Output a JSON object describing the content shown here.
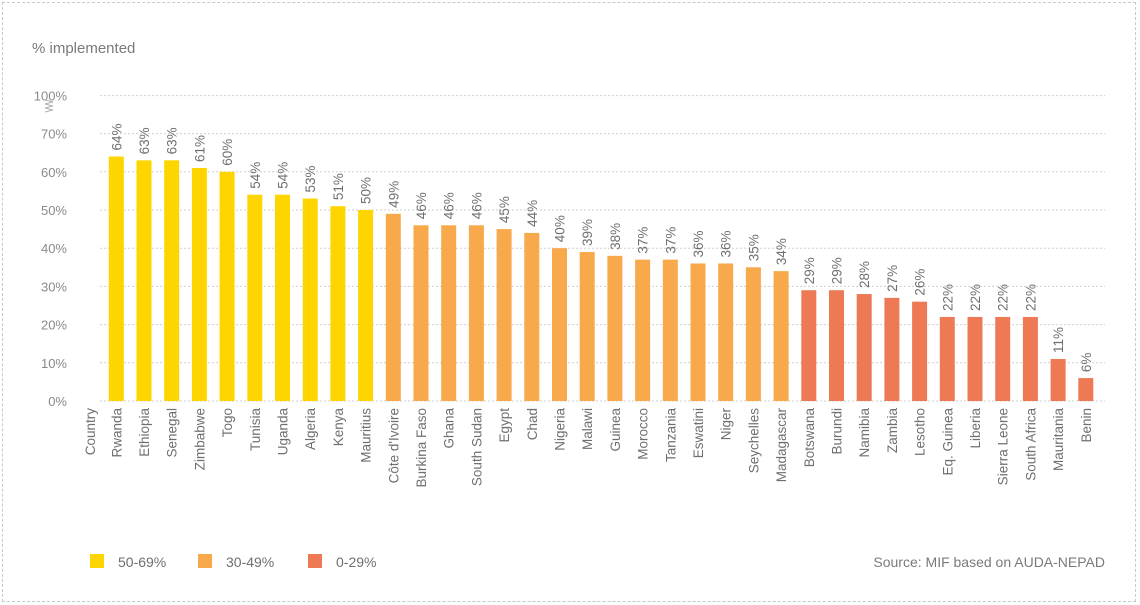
{
  "chart_data": {
    "type": "bar",
    "ylabel": "% implemented",
    "xlabel": "Country",
    "ylim": [
      0,
      100
    ],
    "yticks": [
      0,
      10,
      20,
      30,
      40,
      50,
      60,
      70,
      100
    ],
    "ytick_labels": [
      "0%",
      "10%",
      "20%",
      "30%",
      "40%",
      "50%",
      "60%",
      "70%",
      "100%"
    ],
    "axis_break": true,
    "grid": true,
    "categories": [
      "Rwanda",
      "Ethiopia",
      "Senegal",
      "Zimbabwe",
      "Togo",
      "Tunisia",
      "Uganda",
      "Algeria",
      "Kenya",
      "Mauritius",
      "Côte d'Ivoire",
      "Burkina Faso",
      "Ghana",
      "South Sudan",
      "Egypt",
      "Chad",
      "Nigeria",
      "Malawi",
      "Guinea",
      "Morocco",
      "Tanzania",
      "Eswatini",
      "Niger",
      "Seychelles",
      "Madagascar",
      "Botswana",
      "Burundi",
      "Namibia",
      "Zambia",
      "Lesotho",
      "Eq. Guinea",
      "Liberia",
      "Sierra Leone",
      "South Africa",
      "Mauritania",
      "Benin"
    ],
    "values": [
      64,
      63,
      63,
      61,
      60,
      54,
      54,
      53,
      51,
      50,
      49,
      46,
      46,
      46,
      45,
      44,
      40,
      39,
      38,
      37,
      37,
      36,
      36,
      35,
      34,
      29,
      29,
      28,
      27,
      26,
      22,
      22,
      22,
      22,
      11,
      6
    ],
    "value_labels": [
      "64%",
      "63%",
      "63%",
      "61%",
      "60%",
      "54%",
      "54%",
      "53%",
      "51%",
      "50%",
      "49%",
      "46%",
      "46%",
      "46%",
      "45%",
      "44%",
      "40%",
      "39%",
      "38%",
      "37%",
      "37%",
      "36%",
      "36%",
      "35%",
      "34%",
      "29%",
      "29%",
      "28%",
      "27%",
      "26%",
      "22%",
      "22%",
      "22%",
      "22%",
      "11%",
      "6%"
    ],
    "legend": [
      {
        "label": "50-69%",
        "color": "#FFD500",
        "min": 50
      },
      {
        "label": "30-49%",
        "color": "#F7A94B",
        "min": 30
      },
      {
        "label": "0-29%",
        "color": "#EE7A55",
        "min": 0
      }
    ],
    "legend_placement": "bottom-left",
    "source": "Source: MIF based on AUDA-NEPAD"
  }
}
